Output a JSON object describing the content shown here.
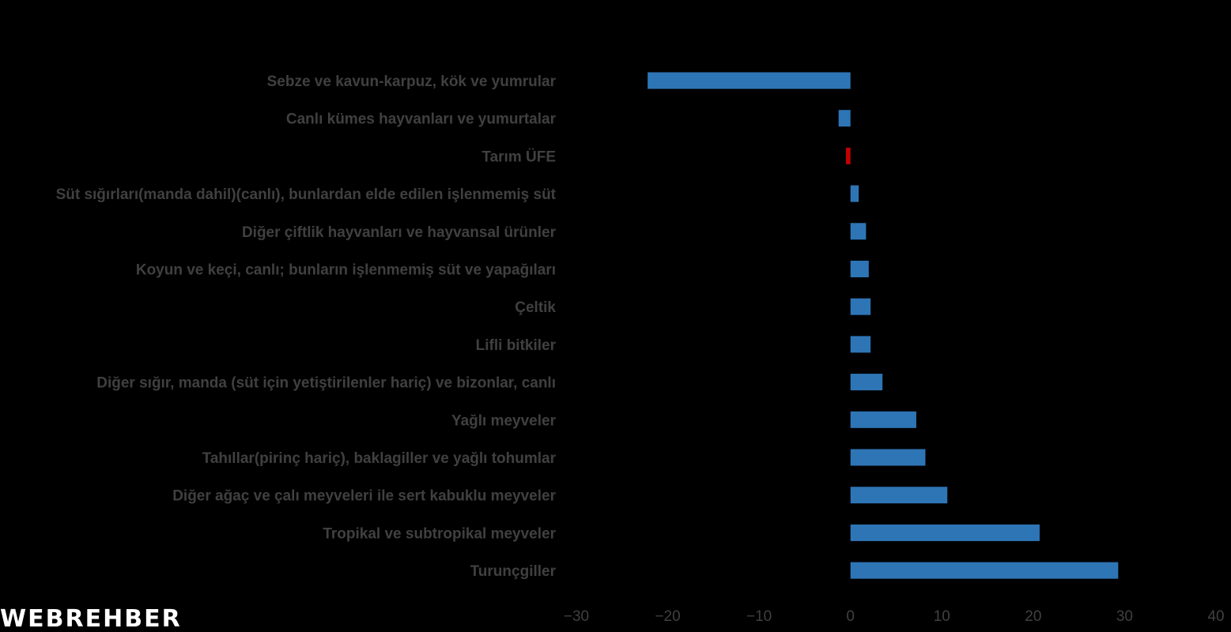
{
  "chart_data": {
    "type": "bar",
    "orientation": "horizontal",
    "categories": [
      "Sebze ve kavun-karpuz, kök ve yumrular",
      "Canlı kümes hayvanları ve yumurtalar",
      "Tarım ÜFE",
      "Süt sığırları(manda dahil)(canlı), bunlardan elde edilen işlenmemiş süt",
      "Diğer çiftlik hayvanları ve hayvansal ürünler",
      "Koyun ve keçi, canlı; bunların işlenmemiş süt ve yapağıları",
      "Çeltik",
      "Lifli bitkiler",
      "Diğer sığır, manda (süt için yetiştirilenler hariç) ve bizonlar, canlı",
      "Yağlı meyveler",
      "Tahıllar(pirinç hariç), baklagiller ve yağlı tohumlar",
      "Diğer ağaç ve çalı meyveleri ile sert kabuklu meyveler",
      "Tropikal ve subtropikal meyveler",
      "Turunçgiller"
    ],
    "values": [
      -22.2,
      -1.3,
      -0.5,
      0.9,
      1.7,
      2.0,
      2.2,
      2.2,
      3.5,
      7.2,
      8.2,
      10.6,
      20.7,
      29.3
    ],
    "highlight": "Tarım ÜFE",
    "xlim": [
      -30,
      40
    ],
    "xticks": [
      -30,
      -20,
      -10,
      0,
      10,
      20,
      30,
      40
    ],
    "title": "",
    "xlabel": "",
    "ylabel": "",
    "grid": false,
    "legend": "none"
  },
  "colors": {
    "background": "#000000",
    "bar": "#2e75b6",
    "highlight_bar": "#c00000",
    "label_text": "#404040"
  },
  "logo": {
    "text": "WEBREHBER"
  }
}
